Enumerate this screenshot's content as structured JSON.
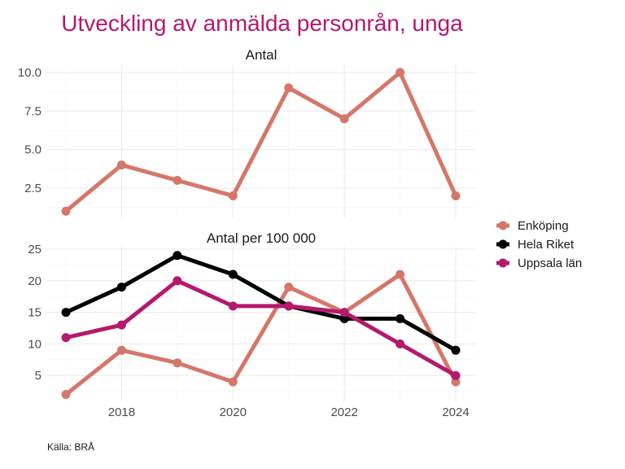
{
  "chart_data": {
    "type": "line",
    "title": "Utveckling av anmälda personrån, unga",
    "caption": "Källa: BRÅ",
    "title_color": "#B5196E",
    "x": [
      2017,
      2018,
      2019,
      2020,
      2021,
      2022,
      2023,
      2024
    ],
    "x_ticks": [
      2018,
      2020,
      2022,
      2024
    ],
    "x_tick_labels": [
      "2018",
      "2020",
      "2022",
      "2024"
    ],
    "legend": {
      "placement": "right",
      "entries": [
        {
          "name": "Enköping",
          "color": "#D4776A"
        },
        {
          "name": "Hela Riket",
          "color": "#000000"
        },
        {
          "name": "Uppsala län",
          "color": "#B5196E"
        }
      ]
    },
    "panels": [
      {
        "title": "Antal",
        "ylim": [
          1,
          10
        ],
        "y_ticks": [
          2.5,
          5.0,
          7.5,
          10.0
        ],
        "y_tick_labels": [
          "2.5",
          "5.0",
          "7.5",
          "10.0"
        ],
        "grid": true,
        "series": [
          {
            "name": "Enköping",
            "color": "#D4776A",
            "values": [
              1,
              4,
              3,
              2,
              9,
              7,
              10,
              2
            ]
          }
        ]
      },
      {
        "title": "Antal per 100 000",
        "ylim": [
          2,
          25
        ],
        "y_ticks": [
          5,
          10,
          15,
          20,
          25
        ],
        "y_tick_labels": [
          "5",
          "10",
          "15",
          "20",
          "25"
        ],
        "grid": true,
        "series": [
          {
            "name": "Enköping",
            "color": "#D4776A",
            "values": [
              2,
              9,
              7,
              4,
              19,
              15,
              21,
              4
            ]
          },
          {
            "name": "Hela Riket",
            "color": "#000000",
            "values": [
              15,
              19,
              24,
              21,
              16,
              14,
              14,
              9
            ]
          },
          {
            "name": "Uppsala län",
            "color": "#B5196E",
            "values": [
              11,
              13,
              20,
              16,
              16,
              15,
              10,
              5
            ]
          }
        ]
      }
    ]
  }
}
